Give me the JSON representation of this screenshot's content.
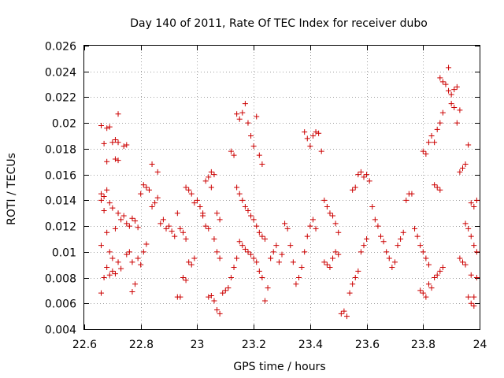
{
  "chart_data": {
    "type": "scatter",
    "title": "Day 140 of 2011, Rate Of TEC Index for receiver dubo",
    "xlabel": "GPS time / hours",
    "ylabel": "ROTI / TECUs",
    "xlim": [
      22.6,
      24.0
    ],
    "ylim": [
      0.004,
      0.026
    ],
    "x_ticks": [
      22.6,
      22.8,
      23.0,
      23.2,
      23.4,
      23.6,
      23.8,
      24.0
    ],
    "x_tick_labels": [
      "22.6",
      "22.8",
      "23",
      "23.2",
      "23.4",
      "23.6",
      "23.8",
      "24"
    ],
    "y_ticks": [
      0.004,
      0.006,
      0.008,
      0.01,
      0.012,
      0.014,
      0.016,
      0.018,
      0.02,
      0.022,
      0.024,
      0.026
    ],
    "y_tick_labels": [
      "0.004",
      "0.006",
      "0.008",
      "0.01",
      "0.012",
      "0.014",
      "0.016",
      "0.018",
      "0.02",
      "0.022",
      "0.024",
      "0.026"
    ],
    "grid": true,
    "marker": "+",
    "color": "#cc0000",
    "series": [
      {
        "name": "ROTI",
        "points": [
          [
            22.66,
            0.0198
          ],
          [
            22.68,
            0.0196
          ],
          [
            22.69,
            0.0197
          ],
          [
            22.72,
            0.0207
          ],
          [
            22.67,
            0.0184
          ],
          [
            22.7,
            0.0185
          ],
          [
            22.71,
            0.0187
          ],
          [
            22.72,
            0.0185
          ],
          [
            22.74,
            0.0182
          ],
          [
            22.75,
            0.0183
          ],
          [
            22.68,
            0.017
          ],
          [
            22.71,
            0.0172
          ],
          [
            22.72,
            0.0171
          ],
          [
            22.66,
            0.0145
          ],
          [
            22.67,
            0.0143
          ],
          [
            22.68,
            0.0148
          ],
          [
            22.66,
            0.014
          ],
          [
            22.69,
            0.0138
          ],
          [
            22.67,
            0.0132
          ],
          [
            22.7,
            0.0134
          ],
          [
            22.72,
            0.013
          ],
          [
            22.73,
            0.0125
          ],
          [
            22.74,
            0.0128
          ],
          [
            22.75,
            0.0122
          ],
          [
            22.76,
            0.012
          ],
          [
            22.77,
            0.0126
          ],
          [
            22.78,
            0.0124
          ],
          [
            22.79,
            0.0119
          ],
          [
            22.71,
            0.0118
          ],
          [
            22.68,
            0.0115
          ],
          [
            22.66,
            0.0105
          ],
          [
            22.69,
            0.01
          ],
          [
            22.7,
            0.0095
          ],
          [
            22.72,
            0.0092
          ],
          [
            22.68,
            0.0088
          ],
          [
            22.7,
            0.0085
          ],
          [
            22.71,
            0.0083
          ],
          [
            22.67,
            0.008
          ],
          [
            22.69,
            0.0082
          ],
          [
            22.66,
            0.0068
          ],
          [
            22.73,
            0.0087
          ],
          [
            22.75,
            0.0098
          ],
          [
            22.76,
            0.01
          ],
          [
            22.77,
            0.0092
          ],
          [
            22.78,
            0.0075
          ],
          [
            22.77,
            0.0069
          ],
          [
            22.79,
            0.0095
          ],
          [
            22.8,
            0.009
          ],
          [
            22.81,
            0.01
          ],
          [
            22.82,
            0.0106
          ],
          [
            22.8,
            0.0145
          ],
          [
            22.81,
            0.0152
          ],
          [
            22.82,
            0.015
          ],
          [
            22.83,
            0.0148
          ],
          [
            22.84,
            0.0135
          ],
          [
            22.85,
            0.0138
          ],
          [
            22.86,
            0.0142
          ],
          [
            22.84,
            0.0168
          ],
          [
            22.86,
            0.0162
          ],
          [
            22.87,
            0.0122
          ],
          [
            22.88,
            0.0125
          ],
          [
            22.89,
            0.0118
          ],
          [
            22.9,
            0.012
          ],
          [
            22.91,
            0.0116
          ],
          [
            22.92,
            0.0112
          ],
          [
            22.93,
            0.013
          ],
          [
            22.94,
            0.0118
          ],
          [
            22.95,
            0.0115
          ],
          [
            22.96,
            0.011
          ],
          [
            22.93,
            0.0065
          ],
          [
            22.94,
            0.0065
          ],
          [
            22.95,
            0.008
          ],
          [
            22.96,
            0.0078
          ],
          [
            22.97,
            0.0092
          ],
          [
            22.98,
            0.009
          ],
          [
            22.99,
            0.0095
          ],
          [
            22.96,
            0.015
          ],
          [
            22.97,
            0.0148
          ],
          [
            22.98,
            0.0145
          ],
          [
            22.99,
            0.0138
          ],
          [
            23.0,
            0.014
          ],
          [
            23.01,
            0.0135
          ],
          [
            23.02,
            0.013
          ],
          [
            23.03,
            0.0155
          ],
          [
            23.04,
            0.0158
          ],
          [
            23.05,
            0.0162
          ],
          [
            23.06,
            0.016
          ],
          [
            23.05,
            0.015
          ],
          [
            23.07,
            0.013
          ],
          [
            23.08,
            0.0125
          ],
          [
            23.02,
            0.0128
          ],
          [
            23.03,
            0.012
          ],
          [
            23.04,
            0.0118
          ],
          [
            23.06,
            0.011
          ],
          [
            23.07,
            0.01
          ],
          [
            23.08,
            0.0095
          ],
          [
            23.04,
            0.0065
          ],
          [
            23.05,
            0.0066
          ],
          [
            23.06,
            0.0062
          ],
          [
            23.07,
            0.0055
          ],
          [
            23.08,
            0.0052
          ],
          [
            23.09,
            0.0068
          ],
          [
            23.1,
            0.007
          ],
          [
            23.11,
            0.0072
          ],
          [
            23.12,
            0.008
          ],
          [
            23.13,
            0.0088
          ],
          [
            23.14,
            0.0095
          ],
          [
            23.12,
            0.0178
          ],
          [
            23.13,
            0.0175
          ],
          [
            23.14,
            0.0207
          ],
          [
            23.15,
            0.0203
          ],
          [
            23.16,
            0.0208
          ],
          [
            23.17,
            0.0215
          ],
          [
            23.18,
            0.02
          ],
          [
            23.19,
            0.019
          ],
          [
            23.2,
            0.0182
          ],
          [
            23.21,
            0.0205
          ],
          [
            23.22,
            0.0175
          ],
          [
            23.23,
            0.0168
          ],
          [
            23.14,
            0.015
          ],
          [
            23.15,
            0.0145
          ],
          [
            23.16,
            0.014
          ],
          [
            23.17,
            0.0135
          ],
          [
            23.18,
            0.0132
          ],
          [
            23.19,
            0.0128
          ],
          [
            23.2,
            0.0125
          ],
          [
            23.21,
            0.012
          ],
          [
            23.22,
            0.0115
          ],
          [
            23.23,
            0.0112
          ],
          [
            23.24,
            0.011
          ],
          [
            23.15,
            0.0108
          ],
          [
            23.16,
            0.0105
          ],
          [
            23.17,
            0.0102
          ],
          [
            23.18,
            0.01
          ],
          [
            23.19,
            0.0098
          ],
          [
            23.2,
            0.0095
          ],
          [
            23.21,
            0.0092
          ],
          [
            23.22,
            0.0085
          ],
          [
            23.23,
            0.008
          ],
          [
            23.24,
            0.0062
          ],
          [
            23.25,
            0.0072
          ],
          [
            23.26,
            0.0095
          ],
          [
            23.27,
            0.01
          ],
          [
            23.28,
            0.0105
          ],
          [
            23.29,
            0.0092
          ],
          [
            23.3,
            0.0098
          ],
          [
            23.31,
            0.0122
          ],
          [
            23.32,
            0.0118
          ],
          [
            23.33,
            0.0105
          ],
          [
            23.34,
            0.0092
          ],
          [
            23.35,
            0.0075
          ],
          [
            23.36,
            0.008
          ],
          [
            23.37,
            0.0088
          ],
          [
            23.38,
            0.01
          ],
          [
            23.39,
            0.0112
          ],
          [
            23.4,
            0.012
          ],
          [
            23.41,
            0.0125
          ],
          [
            23.42,
            0.0118
          ],
          [
            23.38,
            0.0193
          ],
          [
            23.39,
            0.0188
          ],
          [
            23.4,
            0.0182
          ],
          [
            23.41,
            0.019
          ],
          [
            23.42,
            0.0193
          ],
          [
            23.43,
            0.0192
          ],
          [
            23.44,
            0.0178
          ],
          [
            23.45,
            0.014
          ],
          [
            23.46,
            0.0135
          ],
          [
            23.47,
            0.013
          ],
          [
            23.48,
            0.0128
          ],
          [
            23.49,
            0.0122
          ],
          [
            23.5,
            0.0115
          ],
          [
            23.45,
            0.0092
          ],
          [
            23.46,
            0.009
          ],
          [
            23.47,
            0.0088
          ],
          [
            23.48,
            0.0095
          ],
          [
            23.49,
            0.01
          ],
          [
            23.5,
            0.0098
          ],
          [
            23.51,
            0.0052
          ],
          [
            23.52,
            0.0054
          ],
          [
            23.53,
            0.005
          ],
          [
            23.54,
            0.0068
          ],
          [
            23.55,
            0.0075
          ],
          [
            23.56,
            0.008
          ],
          [
            23.57,
            0.0085
          ],
          [
            23.58,
            0.01
          ],
          [
            23.59,
            0.0105
          ],
          [
            23.6,
            0.011
          ],
          [
            23.55,
            0.0148
          ],
          [
            23.56,
            0.015
          ],
          [
            23.57,
            0.016
          ],
          [
            23.58,
            0.0162
          ],
          [
            23.59,
            0.0158
          ],
          [
            23.6,
            0.016
          ],
          [
            23.61,
            0.0155
          ],
          [
            23.62,
            0.0135
          ],
          [
            23.63,
            0.0125
          ],
          [
            23.64,
            0.012
          ],
          [
            23.65,
            0.0112
          ],
          [
            23.66,
            0.0108
          ],
          [
            23.67,
            0.01
          ],
          [
            23.68,
            0.0095
          ],
          [
            23.69,
            0.0088
          ],
          [
            23.7,
            0.0092
          ],
          [
            23.71,
            0.0105
          ],
          [
            23.72,
            0.011
          ],
          [
            23.73,
            0.0115
          ],
          [
            23.74,
            0.014
          ],
          [
            23.75,
            0.0145
          ],
          [
            23.76,
            0.0145
          ],
          [
            23.77,
            0.0118
          ],
          [
            23.78,
            0.0112
          ],
          [
            23.79,
            0.0105
          ],
          [
            23.8,
            0.01
          ],
          [
            23.81,
            0.0095
          ],
          [
            23.82,
            0.009
          ],
          [
            23.79,
            0.007
          ],
          [
            23.8,
            0.0068
          ],
          [
            23.81,
            0.0065
          ],
          [
            23.82,
            0.0075
          ],
          [
            23.83,
            0.0072
          ],
          [
            23.84,
            0.008
          ],
          [
            23.85,
            0.0082
          ],
          [
            23.86,
            0.0085
          ],
          [
            23.87,
            0.0088
          ],
          [
            23.8,
            0.0178
          ],
          [
            23.81,
            0.0176
          ],
          [
            23.82,
            0.0185
          ],
          [
            23.83,
            0.019
          ],
          [
            23.84,
            0.0185
          ],
          [
            23.85,
            0.0195
          ],
          [
            23.86,
            0.02
          ],
          [
            23.87,
            0.0208
          ],
          [
            23.86,
            0.0235
          ],
          [
            23.87,
            0.0232
          ],
          [
            23.88,
            0.023
          ],
          [
            23.89,
            0.0243
          ],
          [
            23.89,
            0.0225
          ],
          [
            23.9,
            0.0222
          ],
          [
            23.91,
            0.0226
          ],
          [
            23.92,
            0.0228
          ],
          [
            23.9,
            0.0215
          ],
          [
            23.91,
            0.0212
          ],
          [
            23.93,
            0.021
          ],
          [
            23.92,
            0.02
          ],
          [
            23.84,
            0.0152
          ],
          [
            23.85,
            0.015
          ],
          [
            23.86,
            0.0148
          ],
          [
            23.93,
            0.0162
          ],
          [
            23.94,
            0.0165
          ],
          [
            23.95,
            0.0168
          ],
          [
            23.96,
            0.0183
          ],
          [
            23.97,
            0.0138
          ],
          [
            23.98,
            0.0135
          ],
          [
            23.99,
            0.014
          ],
          [
            23.95,
            0.0122
          ],
          [
            23.96,
            0.0118
          ],
          [
            23.97,
            0.0112
          ],
          [
            23.98,
            0.0105
          ],
          [
            23.99,
            0.01
          ],
          [
            23.93,
            0.0095
          ],
          [
            23.94,
            0.0092
          ],
          [
            23.95,
            0.009
          ],
          [
            23.96,
            0.0065
          ],
          [
            23.97,
            0.006
          ],
          [
            23.98,
            0.0058
          ],
          [
            23.99,
            0.008
          ],
          [
            23.97,
            0.0082
          ],
          [
            23.98,
            0.0065
          ]
        ]
      }
    ]
  }
}
